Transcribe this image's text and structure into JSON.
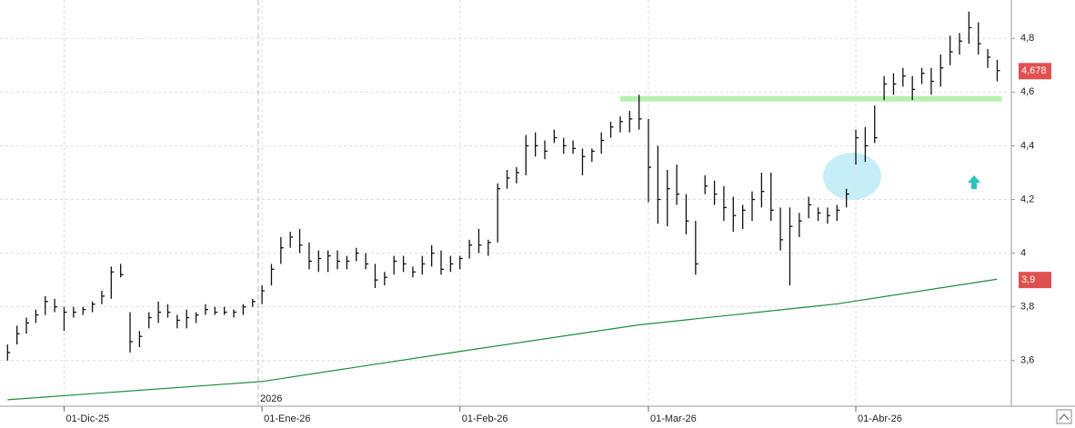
{
  "chart_data": {
    "type": "ohlc",
    "color": "#111111",
    "high": [
      3.66,
      3.73,
      3.76,
      3.79,
      3.84,
      3.83,
      3.8,
      3.8,
      3.8,
      3.82,
      3.86,
      3.95,
      3.96,
      3.78,
      3.71,
      3.78,
      3.82,
      3.81,
      3.77,
      3.79,
      3.78,
      3.81,
      3.8,
      3.8,
      3.79,
      3.81,
      3.83,
      3.88,
      3.96,
      4.06,
      4.08,
      4.09,
      4.04,
      4.01,
      4.01,
      4.01,
      3.99,
      4.02,
      4.0,
      3.96,
      3.93,
      3.99,
      3.99,
      3.95,
      3.99,
      4.03,
      4.01,
      3.99,
      3.99,
      4.05,
      4.09,
      4.05,
      4.26,
      4.31,
      4.32,
      4.44,
      4.45,
      4.42,
      4.46,
      4.43,
      4.42,
      4.39,
      4.39,
      4.45,
      4.49,
      4.51,
      4.53,
      4.59,
      4.5,
      4.4,
      4.31,
      4.33,
      4.22,
      4.12,
      4.29,
      4.27,
      4.25,
      4.21,
      4.18,
      4.23,
      4.3,
      4.3,
      4.17,
      4.17,
      4.15,
      4.21,
      4.17,
      4.17,
      4.18,
      4.24,
      4.46,
      4.47,
      4.55,
      4.66,
      4.67,
      4.69,
      4.66,
      4.69,
      4.69,
      4.74,
      4.81,
      4.82,
      4.9,
      4.86,
      4.76,
      4.72
    ],
    "low": [
      3.6,
      3.66,
      3.7,
      3.74,
      3.77,
      3.78,
      3.71,
      3.76,
      3.77,
      3.78,
      3.81,
      3.83,
      3.91,
      3.63,
      3.65,
      3.72,
      3.74,
      3.76,
      3.72,
      3.72,
      3.74,
      3.77,
      3.77,
      3.77,
      3.76,
      3.77,
      3.8,
      3.81,
      3.88,
      3.96,
      4.02,
      4.0,
      3.94,
      3.93,
      3.93,
      3.94,
      3.94,
      3.97,
      3.94,
      3.87,
      3.88,
      3.92,
      3.93,
      3.91,
      3.92,
      3.95,
      3.92,
      3.93,
      3.94,
      3.98,
      4.0,
      3.99,
      4.04,
      4.24,
      4.26,
      4.29,
      4.36,
      4.35,
      4.41,
      4.37,
      4.37,
      4.29,
      4.34,
      4.37,
      4.43,
      4.45,
      4.45,
      4.46,
      4.19,
      4.11,
      4.1,
      4.18,
      4.07,
      3.92,
      4.22,
      4.18,
      4.12,
      4.08,
      4.09,
      4.12,
      4.17,
      4.12,
      4.01,
      3.88,
      4.06,
      4.13,
      4.12,
      4.11,
      4.12,
      4.17,
      4.33,
      4.34,
      4.41,
      4.57,
      4.59,
      4.62,
      4.57,
      4.63,
      4.59,
      4.62,
      4.7,
      4.74,
      4.78,
      4.74,
      4.69,
      4.64
    ],
    "close": [
      3.63,
      3.7,
      3.74,
      3.77,
      3.82,
      3.8,
      3.78,
      3.78,
      3.79,
      3.81,
      3.84,
      3.93,
      3.92,
      3.67,
      3.69,
      3.76,
      3.78,
      3.78,
      3.75,
      3.76,
      3.77,
      3.79,
      3.78,
      3.78,
      3.78,
      3.8,
      3.82,
      3.86,
      3.94,
      4.02,
      4.06,
      4.03,
      3.97,
      3.98,
      3.99,
      3.97,
      3.97,
      4.0,
      3.96,
      3.9,
      3.91,
      3.97,
      3.96,
      3.93,
      3.96,
      4.0,
      3.94,
      3.96,
      3.98,
      4.03,
      4.03,
      4.04,
      4.24,
      4.28,
      4.3,
      4.4,
      4.4,
      4.38,
      4.43,
      4.4,
      4.39,
      4.36,
      4.38,
      4.42,
      4.47,
      4.49,
      4.5,
      4.5,
      4.32,
      4.2,
      4.24,
      4.22,
      4.12,
      3.96,
      4.25,
      4.22,
      4.17,
      4.14,
      4.16,
      4.2,
      4.23,
      4.16,
      4.05,
      4.1,
      4.12,
      4.18,
      4.15,
      4.14,
      4.16,
      4.22,
      4.43,
      4.4,
      4.43,
      4.63,
      4.63,
      4.66,
      4.61,
      4.67,
      4.64,
      4.69,
      4.75,
      4.79,
      4.84,
      4.78,
      4.73,
      4.68
    ],
    "ma": {
      "color": "#1e8c3c",
      "x": [
        0,
        27,
        48,
        67,
        88,
        105
      ],
      "values": [
        3.454,
        3.522,
        3.634,
        3.733,
        3.811,
        3.903
      ]
    },
    "support": {
      "color": "#b6f0ae",
      "value": 4.575,
      "x": [
        65,
        105.5
      ]
    },
    "xlim": [
      -0.8,
      106.5
    ],
    "xticks": [
      {
        "value": 6,
        "label": "01-Dic-25"
      },
      {
        "value": 27,
        "label": "01-Ene-26"
      },
      {
        "value": 48,
        "label": "01-Feb-26"
      },
      {
        "value": 68,
        "label": "01-Mar-26"
      },
      {
        "value": 90,
        "label": "01-Abr-26"
      }
    ],
    "year_marker": {
      "value": 26.6,
      "label": "2026"
    },
    "ylim": [
      3.43,
      4.943
    ],
    "yticks": [
      {
        "value": 3.6,
        "label": "3,6"
      },
      {
        "value": 3.8,
        "label": "3,8"
      },
      4,
      {
        "value": 4.2,
        "label": "4,2"
      },
      {
        "value": 4.4,
        "label": "4,4"
      },
      {
        "value": 4.6,
        "label": "4,6"
      },
      {
        "value": 4.8,
        "label": "4,8"
      }
    ],
    "grid": true,
    "price_tags": [
      {
        "value": 4.678,
        "label": "4,678",
        "color": "#e05050"
      },
      {
        "value": 3.9,
        "label": "3,9",
        "color": "#e05050"
      }
    ]
  }
}
